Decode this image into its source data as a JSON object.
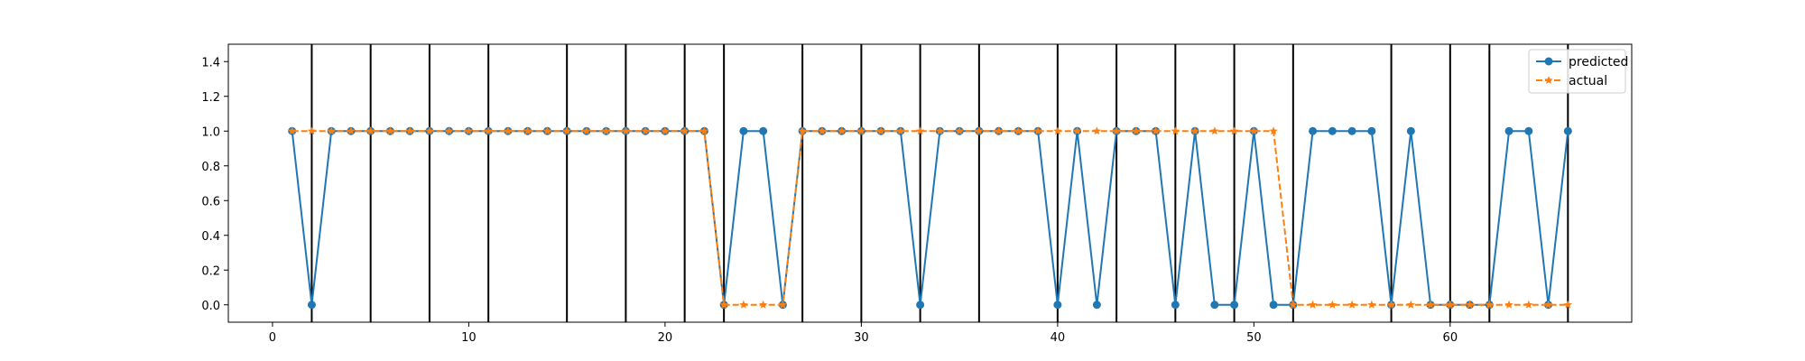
{
  "chart_data": {
    "type": "line",
    "x": [
      1,
      2,
      3,
      4,
      5,
      6,
      7,
      8,
      9,
      10,
      11,
      12,
      13,
      14,
      15,
      16,
      17,
      18,
      19,
      20,
      21,
      22,
      23,
      24,
      25,
      26,
      27,
      28,
      29,
      30,
      31,
      32,
      33,
      34,
      35,
      36,
      37,
      38,
      39,
      40,
      41,
      42,
      43,
      44,
      45,
      46,
      47,
      48,
      49,
      50,
      51,
      52,
      53,
      54,
      55,
      56,
      57,
      58,
      59,
      60,
      61,
      62,
      63,
      64,
      65,
      66
    ],
    "series": [
      {
        "name": "predicted",
        "color": "#1f77b4",
        "line_style": "solid",
        "marker": "circle",
        "values": [
          1,
          0,
          1,
          1,
          1,
          1,
          1,
          1,
          1,
          1,
          1,
          1,
          1,
          1,
          1,
          1,
          1,
          1,
          1,
          1,
          1,
          1,
          0,
          1,
          1,
          0,
          1,
          1,
          1,
          1,
          1,
          1,
          0,
          1,
          1,
          1,
          1,
          1,
          1,
          0,
          1,
          0,
          1,
          1,
          1,
          0,
          1,
          0,
          0,
          1,
          0,
          0,
          1,
          1,
          1,
          1,
          0,
          1,
          0,
          0,
          0,
          0,
          1,
          1,
          0,
          1
        ]
      },
      {
        "name": "actual",
        "color": "#ff7f0e",
        "line_style": "dashed",
        "marker": "star",
        "values": [
          1,
          1,
          1,
          1,
          1,
          1,
          1,
          1,
          1,
          1,
          1,
          1,
          1,
          1,
          1,
          1,
          1,
          1,
          1,
          1,
          1,
          1,
          0,
          0,
          0,
          0,
          1,
          1,
          1,
          1,
          1,
          1,
          1,
          1,
          1,
          1,
          1,
          1,
          1,
          1,
          1,
          1,
          1,
          1,
          1,
          1,
          1,
          1,
          1,
          1,
          1,
          0,
          0,
          0,
          0,
          0,
          0,
          0,
          0,
          0,
          0,
          0,
          0,
          0,
          0,
          0
        ]
      }
    ],
    "vertical_lines": [
      2,
      5,
      8,
      11,
      15,
      18,
      21,
      23,
      27,
      30,
      33,
      36,
      40,
      43,
      46,
      49,
      52,
      57,
      60,
      62,
      66
    ],
    "vertical_line_color": "#000000",
    "xlim": [
      -2.25,
      69.25
    ],
    "ylim": [
      -0.1,
      1.5
    ],
    "xticks": [
      0,
      10,
      20,
      30,
      40,
      50,
      60
    ],
    "yticks": [
      0.0,
      0.2,
      0.4,
      0.6,
      0.8,
      1.0,
      1.2,
      1.4
    ],
    "ytick_labels": [
      "0.0",
      "0.2",
      "0.4",
      "0.6",
      "0.8",
      "1.0",
      "1.2",
      "1.4"
    ],
    "xlabel": "",
    "ylabel": "",
    "title": "",
    "grid": false,
    "legend_position": "top-right"
  }
}
